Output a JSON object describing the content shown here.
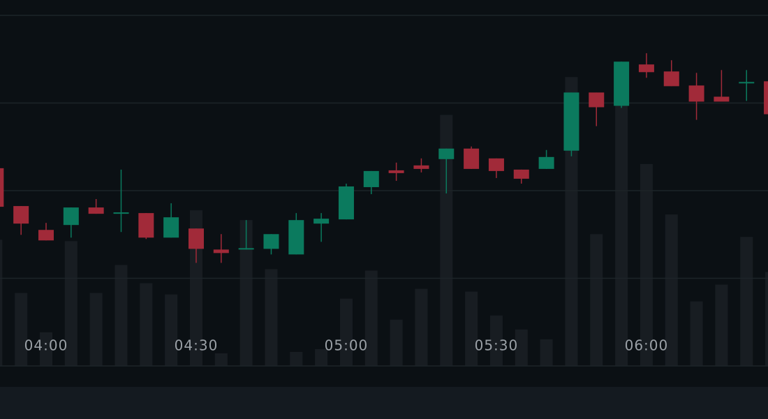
{
  "chart_data": {
    "type": "candlestick",
    "categories": [
      null,
      null,
      "04:00",
      null,
      null,
      null,
      null,
      null,
      "04:30",
      null,
      null,
      null,
      null,
      null,
      "05:00",
      null,
      null,
      null,
      null,
      null,
      "05:30",
      null,
      null,
      null,
      null,
      null,
      "06:00",
      null,
      null,
      null,
      null,
      null
    ],
    "open": [
      56.4,
      45.6,
      38.8,
      40.2,
      45.2,
      43.4,
      43.6,
      36.6,
      39.2,
      33.2,
      33.2,
      33.4,
      31.8,
      40.6,
      41.8,
      51,
      55.8,
      57.2,
      59,
      62,
      59.2,
      56,
      56.2,
      61.4,
      78,
      74.2,
      86,
      84,
      80,
      76.8,
      80.6,
      81.2
    ],
    "high": [
      56.4,
      45.6,
      40.8,
      45.2,
      47.6,
      56,
      43.6,
      46.4,
      39.2,
      37.6,
      41.6,
      37.6,
      43.6,
      43.6,
      52,
      55.6,
      58,
      59.2,
      62,
      62.6,
      59.2,
      56,
      61.6,
      78,
      78,
      86.8,
      89.2,
      87.2,
      83.6,
      84.4,
      84.4,
      81.2
    ],
    "low": [
      45.4,
      37.4,
      35.8,
      36.6,
      43.4,
      38.2,
      36.2,
      36.6,
      29.4,
      29.4,
      33.2,
      31.8,
      31.8,
      35.4,
      41.8,
      49,
      52.8,
      55.2,
      49.2,
      56.2,
      53.6,
      52,
      56.2,
      59.8,
      68.4,
      73.6,
      82.2,
      79.8,
      70.2,
      75.4,
      75.6,
      71.8
    ],
    "close": [
      45.4,
      40.6,
      35.8,
      45.2,
      43.4,
      43.8,
      36.6,
      42.4,
      33.4,
      32.2,
      33.6,
      37.6,
      41.6,
      42,
      51.2,
      55.6,
      55,
      56.2,
      62,
      56.2,
      55.6,
      53.4,
      59.6,
      78,
      73.8,
      86.8,
      83.8,
      79.8,
      75.4,
      75.4,
      81,
      71.8
    ],
    "volume": [
      36,
      20.8,
      9.6,
      35.6,
      20.8,
      28.8,
      23.6,
      20.4,
      44.4,
      3.6,
      41.6,
      27.6,
      4,
      4.8,
      19.2,
      27.2,
      13.2,
      22,
      71.6,
      21.2,
      14.4,
      10.4,
      7.6,
      82.4,
      37.6,
      74.8,
      57.6,
      43.2,
      18.4,
      23.2,
      36.8,
      26.8
    ],
    "up_color": "#0b7a5e",
    "down_color": "#a12a39",
    "volume_color": "#181d22",
    "ylim": [
      0,
      100
    ],
    "yticks": [
      0,
      25,
      50,
      75,
      100
    ],
    "y2lim": [
      0,
      100
    ],
    "grid": true
  }
}
